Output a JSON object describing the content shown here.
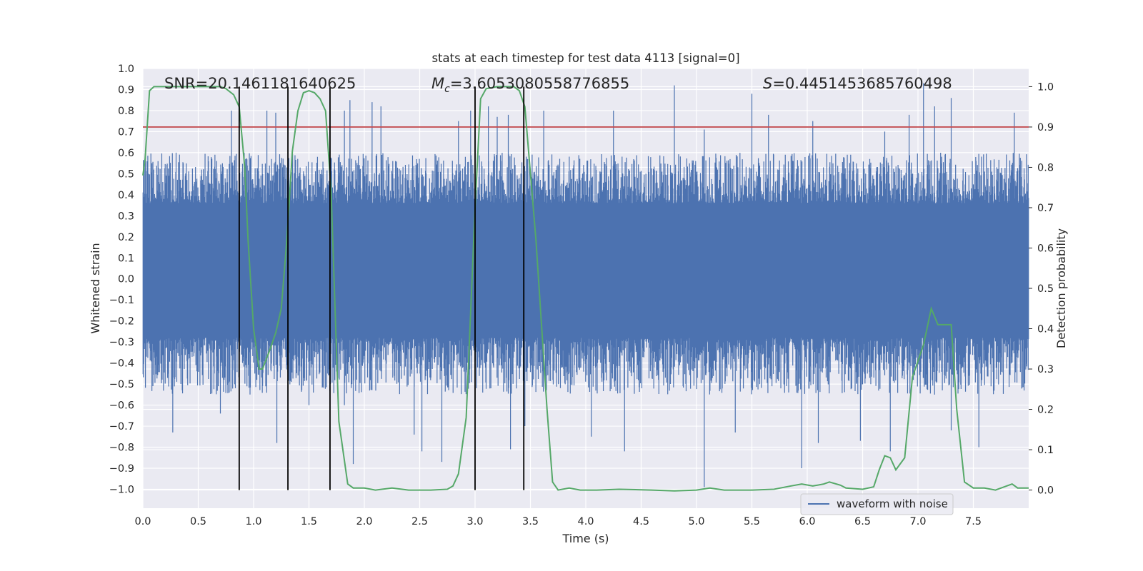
{
  "chart_data": {
    "type": "line",
    "title": "stats at each timestep for test data 4113 [signal=0]",
    "xlabel": "Time (s)",
    "ylabel": "Whitened strain",
    "y2label": "Detection probability",
    "xlim": [
      0,
      8
    ],
    "ylim": [
      -1.09,
      1.0
    ],
    "y2lim": [
      -0.045,
      1.045
    ],
    "x_ticks": [
      "0.0",
      "0.5",
      "1.0",
      "1.5",
      "2.0",
      "2.5",
      "3.0",
      "3.5",
      "4.0",
      "4.5",
      "5.0",
      "5.5",
      "6.0",
      "6.5",
      "7.0",
      "7.5"
    ],
    "y_ticks": [
      "1.0",
      "0.9",
      "0.8",
      "0.7",
      "0.6",
      "0.5",
      "0.4",
      "0.3",
      "0.2",
      "0.1",
      "0.0",
      "−0.1",
      "−0.2",
      "−0.3",
      "−0.4",
      "−0.5",
      "−0.6",
      "−0.7",
      "−0.8",
      "−0.9",
      "−1.0"
    ],
    "y2_ticks": [
      "1.0",
      "0.9",
      "0.8",
      "0.7",
      "0.6",
      "0.5",
      "0.4",
      "0.3",
      "0.2",
      "0.1",
      "0.0"
    ],
    "grid": true,
    "legend": {
      "position": "lower-right",
      "entries": [
        "waveform with noise"
      ]
    },
    "annotations": {
      "snr": "SNR=20.1461181640625",
      "mc_symbol": "M",
      "mc_sub": "c",
      "mc_value": "=3.6053080558776855",
      "s_symbol": "S",
      "s_value": "=0.4451453685760498"
    },
    "threshold": 0.9,
    "vertical_markers": [
      0.87,
      1.31,
      1.69,
      3.0,
      3.44
    ],
    "series": [
      {
        "name": "waveform with noise",
        "kind": "strain",
        "color": "#4c72b0",
        "core_range": [
          -0.28,
          0.36
        ],
        "typical_peak": 0.6,
        "spikes": [
          [
            0.8,
            0.8
          ],
          [
            1.12,
            0.8
          ],
          [
            1.2,
            0.79
          ],
          [
            1.82,
            0.8
          ],
          [
            1.87,
            0.85
          ],
          [
            2.07,
            0.84
          ],
          [
            2.15,
            0.82
          ],
          [
            2.85,
            0.75
          ],
          [
            2.96,
            0.8
          ],
          [
            3.12,
            0.82
          ],
          [
            3.2,
            0.77
          ],
          [
            3.3,
            0.78
          ],
          [
            3.62,
            0.8
          ],
          [
            4.25,
            0.8
          ],
          [
            5.07,
            0.71
          ],
          [
            5.5,
            0.88
          ],
          [
            5.65,
            0.78
          ],
          [
            6.05,
            0.75
          ],
          [
            6.7,
            0.7
          ],
          [
            6.92,
            0.78
          ],
          [
            7.05,
            0.93
          ],
          [
            7.15,
            0.82
          ],
          [
            7.3,
            0.86
          ],
          [
            7.87,
            0.79
          ],
          [
            0.3,
            0.6
          ],
          [
            4.8,
            0.92
          ],
          [
            1.5,
            -0.6
          ],
          [
            1.21,
            -0.78
          ],
          [
            1.9,
            -0.88
          ],
          [
            2.52,
            -0.82
          ],
          [
            2.7,
            -0.87
          ],
          [
            3.32,
            -0.81
          ],
          [
            4.35,
            -0.82
          ],
          [
            5.07,
            -0.99
          ],
          [
            5.95,
            -0.9
          ],
          [
            6.48,
            -0.77
          ],
          [
            6.75,
            -0.82
          ],
          [
            7.15,
            -0.55
          ],
          [
            7.3,
            -0.72
          ],
          [
            0.27,
            -0.73
          ],
          [
            0.7,
            -0.64
          ],
          [
            2.45,
            -0.74
          ],
          [
            3.45,
            -0.7
          ],
          [
            4.05,
            -0.75
          ],
          [
            6.1,
            -0.78
          ],
          [
            7.55,
            -0.8
          ],
          [
            1.82,
            -0.6
          ],
          [
            5.35,
            -0.73
          ]
        ]
      },
      {
        "name": "detection probability",
        "kind": "probability",
        "color": "#55a868",
        "points": [
          [
            0.0,
            0.78
          ],
          [
            0.02,
            0.82
          ],
          [
            0.06,
            0.99
          ],
          [
            0.1,
            1.0
          ],
          [
            0.3,
            1.0
          ],
          [
            0.5,
            1.0
          ],
          [
            0.7,
            1.0
          ],
          [
            0.75,
            0.995
          ],
          [
            0.82,
            0.98
          ],
          [
            0.87,
            0.95
          ],
          [
            0.92,
            0.8
          ],
          [
            0.95,
            0.62
          ],
          [
            1.0,
            0.4
          ],
          [
            1.05,
            0.3
          ],
          [
            1.08,
            0.3
          ],
          [
            1.15,
            0.35
          ],
          [
            1.2,
            0.39
          ],
          [
            1.25,
            0.45
          ],
          [
            1.3,
            0.62
          ],
          [
            1.35,
            0.84
          ],
          [
            1.4,
            0.94
          ],
          [
            1.45,
            0.985
          ],
          [
            1.5,
            0.99
          ],
          [
            1.55,
            0.985
          ],
          [
            1.6,
            0.97
          ],
          [
            1.65,
            0.94
          ],
          [
            1.7,
            0.74
          ],
          [
            1.77,
            0.17
          ],
          [
            1.85,
            0.015
          ],
          [
            1.9,
            0.005
          ],
          [
            2.0,
            0.005
          ],
          [
            2.1,
            0.0
          ],
          [
            2.25,
            0.005
          ],
          [
            2.4,
            0.0
          ],
          [
            2.6,
            0.0
          ],
          [
            2.75,
            0.002
          ],
          [
            2.8,
            0.01
          ],
          [
            2.85,
            0.04
          ],
          [
            2.92,
            0.18
          ],
          [
            3.0,
            0.7
          ],
          [
            3.05,
            0.97
          ],
          [
            3.1,
            0.995
          ],
          [
            3.2,
            1.0
          ],
          [
            3.35,
            1.0
          ],
          [
            3.4,
            0.99
          ],
          [
            3.45,
            0.95
          ],
          [
            3.55,
            0.62
          ],
          [
            3.65,
            0.2
          ],
          [
            3.7,
            0.02
          ],
          [
            3.75,
            0.0
          ],
          [
            3.85,
            0.005
          ],
          [
            3.95,
            0.0
          ],
          [
            4.1,
            0.0
          ],
          [
            4.3,
            0.002
          ],
          [
            4.6,
            0.0
          ],
          [
            4.8,
            -0.002
          ],
          [
            5.0,
            0.0
          ],
          [
            5.12,
            0.005
          ],
          [
            5.25,
            0.0
          ],
          [
            5.5,
            0.0
          ],
          [
            5.7,
            0.002
          ],
          [
            5.85,
            0.01
          ],
          [
            5.95,
            0.015
          ],
          [
            6.05,
            0.01
          ],
          [
            6.15,
            0.015
          ],
          [
            6.2,
            0.02
          ],
          [
            6.3,
            0.012
          ],
          [
            6.35,
            0.005
          ],
          [
            6.5,
            0.002
          ],
          [
            6.6,
            0.008
          ],
          [
            6.65,
            0.05
          ],
          [
            6.7,
            0.085
          ],
          [
            6.75,
            0.08
          ],
          [
            6.8,
            0.05
          ],
          [
            6.88,
            0.08
          ],
          [
            6.95,
            0.28
          ],
          [
            7.05,
            0.36
          ],
          [
            7.12,
            0.45
          ],
          [
            7.18,
            0.41
          ],
          [
            7.25,
            0.41
          ],
          [
            7.3,
            0.41
          ],
          [
            7.35,
            0.2
          ],
          [
            7.42,
            0.02
          ],
          [
            7.5,
            0.005
          ],
          [
            7.6,
            0.005
          ],
          [
            7.7,
            0.0
          ],
          [
            7.85,
            0.015
          ],
          [
            7.9,
            0.005
          ],
          [
            8.0,
            0.005
          ]
        ]
      }
    ]
  }
}
